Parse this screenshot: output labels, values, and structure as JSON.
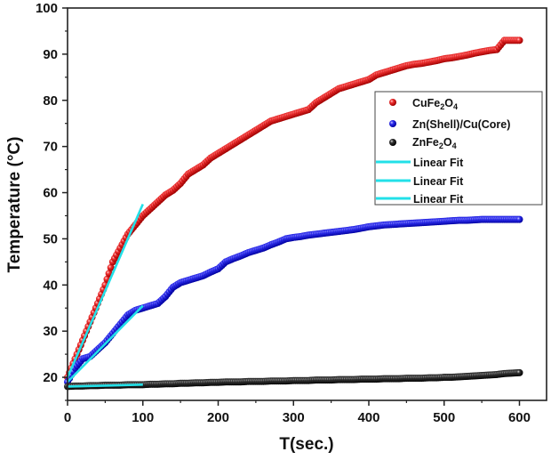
{
  "chart_data": {
    "type": "scatter",
    "title": "",
    "xlabel": "T(sec.)",
    "ylabel": "Temperature (°C)",
    "xlim": [
      0,
      636
    ],
    "ylim": [
      15,
      100
    ],
    "xticks": [
      0,
      100,
      200,
      300,
      400,
      500,
      600
    ],
    "xtick_labels": [
      "0",
      "100",
      "200",
      "300",
      "400",
      "500",
      "600"
    ],
    "yticks": [
      20,
      30,
      40,
      50,
      60,
      70,
      80,
      90,
      100
    ],
    "ytick_labels": [
      "20",
      "30",
      "40",
      "50",
      "60",
      "70",
      "80",
      "90",
      "100"
    ],
    "grid": false,
    "legend_position": "right-upper",
    "x": [
      0,
      10,
      20,
      30,
      40,
      50,
      60,
      70,
      80,
      90,
      100,
      110,
      120,
      130,
      140,
      150,
      160,
      170,
      180,
      190,
      200,
      210,
      220,
      230,
      240,
      250,
      260,
      270,
      280,
      290,
      300,
      310,
      320,
      330,
      340,
      350,
      360,
      370,
      380,
      390,
      400,
      410,
      420,
      430,
      440,
      450,
      460,
      470,
      480,
      490,
      500,
      510,
      520,
      530,
      540,
      550,
      560,
      570,
      580,
      590,
      600
    ],
    "series": [
      {
        "name": "CuFe2O4",
        "legend_main": "CuFe",
        "legend_sub1": "2",
        "legend_mid": "O",
        "legend_sub2": "4",
        "color": "#e8201e",
        "values": [
          20,
          24,
          28,
          32,
          36,
          40,
          45,
          48,
          51,
          53,
          55,
          56.5,
          58,
          59.5,
          60.5,
          62,
          64,
          65,
          66,
          67.5,
          68.5,
          69.5,
          70.5,
          71.5,
          72.5,
          73.5,
          74.5,
          75.5,
          76,
          76.5,
          77,
          77.5,
          78,
          79.5,
          80.5,
          81.5,
          82.5,
          83,
          83.5,
          84,
          84.5,
          85.5,
          86,
          86.5,
          87,
          87.5,
          87.8,
          88,
          88.3,
          88.6,
          89,
          89.2,
          89.5,
          89.8,
          90.2,
          90.5,
          90.8,
          91,
          93,
          93,
          93
        ]
      },
      {
        "name": "Zn(Shell)/Cu(Core)",
        "legend_main": "Zn(Shell)/Cu(Core)",
        "color": "#1f1fd6",
        "values": [
          19,
          22,
          24,
          24.5,
          26,
          27.5,
          29.5,
          31.5,
          33.5,
          34.5,
          35,
          35.5,
          36,
          37.5,
          39.5,
          40.5,
          41,
          41.5,
          42,
          42.8,
          43.5,
          45,
          45.7,
          46.3,
          47,
          47.5,
          48,
          48.7,
          49.3,
          50,
          50.3,
          50.5,
          50.8,
          51,
          51.2,
          51.4,
          51.6,
          51.8,
          52,
          52.3,
          52.6,
          52.8,
          53,
          53.1,
          53.2,
          53.3,
          53.4,
          53.5,
          53.6,
          53.7,
          53.8,
          53.9,
          54,
          54,
          54.1,
          54.2,
          54.2,
          54.2,
          54.2,
          54.2,
          54.2
        ]
      },
      {
        "name": "ZnFe2O4",
        "legend_main": "ZnFe",
        "legend_sub1": "2",
        "legend_mid": "O",
        "legend_sub2": "4",
        "color": "#111111",
        "values": [
          18,
          18.1,
          18.1,
          18.2,
          18.2,
          18.3,
          18.3,
          18.3,
          18.4,
          18.4,
          18.4,
          18.5,
          18.5,
          18.6,
          18.6,
          18.7,
          18.7,
          18.8,
          18.8,
          18.9,
          18.9,
          19,
          19,
          19,
          19.1,
          19.1,
          19.1,
          19.2,
          19.2,
          19.2,
          19.3,
          19.3,
          19.3,
          19.4,
          19.4,
          19.4,
          19.5,
          19.5,
          19.5,
          19.6,
          19.6,
          19.6,
          19.7,
          19.7,
          19.7,
          19.8,
          19.8,
          19.8,
          19.9,
          19.9,
          20,
          20,
          20.1,
          20.2,
          20.3,
          20.4,
          20.5,
          20.6,
          20.8,
          20.9,
          21
        ]
      }
    ],
    "fits": [
      {
        "name": "Linear Fit",
        "x": [
          0,
          100
        ],
        "y": [
          20,
          57.5
        ],
        "color": "#22e0e8"
      },
      {
        "name": "Linear Fit",
        "x": [
          0,
          100
        ],
        "y": [
          19,
          35.5
        ],
        "color": "#22e0e8"
      },
      {
        "name": "Linear Fit",
        "x": [
          0,
          100
        ],
        "y": [
          18,
          18.4
        ],
        "color": "#22e0e8"
      }
    ]
  }
}
